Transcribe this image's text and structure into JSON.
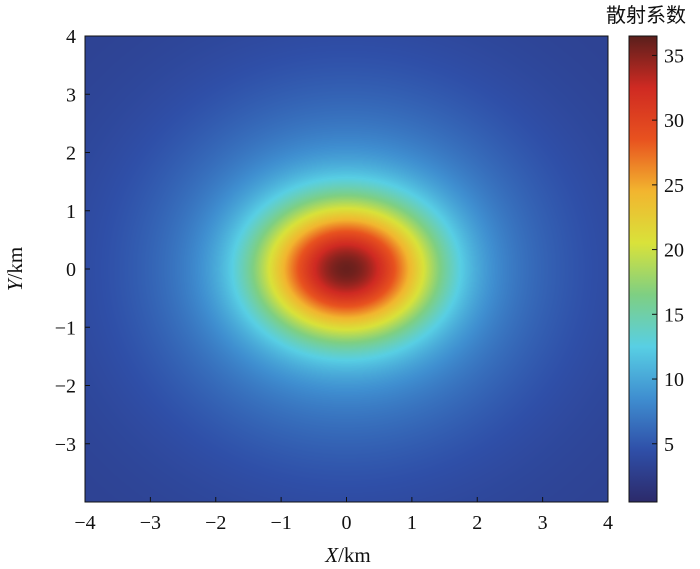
{
  "chart_data": {
    "type": "heatmap",
    "title": "",
    "xlabel": {
      "var": "X",
      "unit": "/km"
    },
    "ylabel": {
      "var": "Y",
      "unit": "/km"
    },
    "xlim": [
      -4,
      4
    ],
    "ylim": [
      -4,
      4
    ],
    "xticks": [
      -4,
      -3,
      -2,
      -1,
      0,
      1,
      2,
      3,
      4
    ],
    "yticks": [
      -3,
      -2,
      -1,
      0,
      1,
      2,
      3,
      4
    ],
    "xtick_labels": [
      "−4",
      "−3",
      "−2",
      "−1",
      "0",
      "1",
      "2",
      "3",
      "4"
    ],
    "ytick_labels": [
      "−3",
      "−2",
      "−1",
      "0",
      "1",
      "2",
      "3",
      "4"
    ],
    "field": {
      "center": [
        0,
        0
      ],
      "peak": 36,
      "core_sigma_x_km": 0.9,
      "core_sigma_y_km": 0.78,
      "halo_amplitude": 8.5,
      "halo_sigma_x_km": 2.0,
      "halo_sigma_y_km": 2.0,
      "background": 3.0
    },
    "colorbar": {
      "title": "散射系数",
      "range": [
        0.5,
        36.5
      ],
      "ticks": [
        5,
        10,
        15,
        20,
        25,
        30,
        35
      ],
      "tick_labels": [
        "5",
        "10",
        "15",
        "20",
        "25",
        "30",
        "35"
      ],
      "colormap": "jet",
      "colors": [
        "#2c2a6a",
        "#2f4fa8",
        "#3f8ed0",
        "#58cfe4",
        "#7ecf83",
        "#d9e23a",
        "#f2b52f",
        "#e8521f",
        "#cf2a22",
        "#5a1f1c"
      ]
    },
    "grid": false
  }
}
